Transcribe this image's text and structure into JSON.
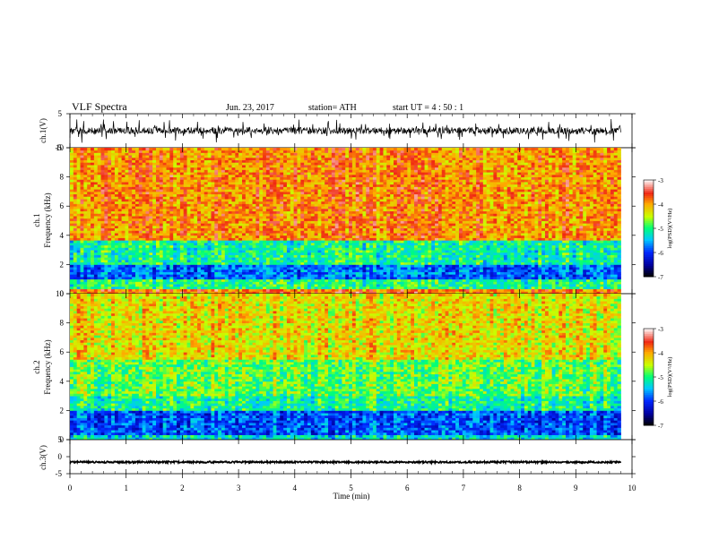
{
  "header": {
    "title": "VLF  Spectra",
    "date": "Jun. 23, 2017",
    "station": "station= ATH",
    "start": "start  UT  =   4  : 50 : 1"
  },
  "chart_data": [
    {
      "type": "line",
      "panel": "ch1-waveform",
      "ylabel": "ch.1(V)",
      "ylim": [
        -5,
        5
      ],
      "yticks": [
        5,
        -5
      ],
      "xlim": [
        0,
        10
      ],
      "xlabel": "",
      "baseline": 0,
      "color": "#000000"
    },
    {
      "type": "heatmap",
      "panel": "ch1-spectrogram",
      "ylabel_line1": "ch.1",
      "ylabel_line2": "Frequency  (kHz)",
      "ylim": [
        0,
        10
      ],
      "yticks": [
        0,
        2,
        4,
        6,
        8,
        10
      ],
      "xlim": [
        0,
        10
      ],
      "bands": [
        {
          "from": 0,
          "to": 0.4,
          "level": -3.8
        },
        {
          "from": 0.4,
          "to": 1.0,
          "level": -5.0
        },
        {
          "from": 1.0,
          "to": 2.0,
          "level": -5.8
        },
        {
          "from": 2.0,
          "to": 3.7,
          "level": -5.1
        },
        {
          "from": 3.7,
          "to": 10,
          "level": -3.9
        }
      ],
      "colorbar": {
        "label": "log(PSD)(V²/Hz)",
        "ticks": [
          -3,
          -4,
          -5,
          -6,
          -7
        ]
      }
    },
    {
      "type": "heatmap",
      "panel": "ch2-spectrogram",
      "ylabel_line1": "ch.2",
      "ylabel_line2": "Frequency  (kHz)",
      "ylim": [
        0,
        10
      ],
      "yticks": [
        0,
        2,
        4,
        6,
        8,
        10
      ],
      "xlim": [
        0,
        10
      ],
      "bands": [
        {
          "from": 0,
          "to": 0.4,
          "level": -5.3
        },
        {
          "from": 0.4,
          "to": 2.0,
          "level": -5.9
        },
        {
          "from": 2.0,
          "to": 3.0,
          "level": -5.1
        },
        {
          "from": 3.0,
          "to": 5.5,
          "level": -4.8
        },
        {
          "from": 5.5,
          "to": 10,
          "level": -4.3
        }
      ],
      "colorbar": {
        "label": "log(PSD)(V²/Hz)",
        "ticks": [
          -3,
          -4,
          -5,
          -6,
          -7
        ]
      }
    },
    {
      "type": "line",
      "panel": "ch3-waveform",
      "ylabel": "ch.3(V)",
      "ylim": [
        -5,
        5
      ],
      "yticks": [
        5,
        0,
        -5
      ],
      "xlim": [
        0,
        10
      ],
      "baseline": -1.6,
      "color": "#000000"
    }
  ],
  "x_axis": {
    "label": "Time  (min)",
    "ticks": [
      "0",
      "1",
      "2",
      "3",
      "4",
      "5",
      "6",
      "7",
      "8",
      "9",
      "10"
    ],
    "data_end": 9.8
  }
}
